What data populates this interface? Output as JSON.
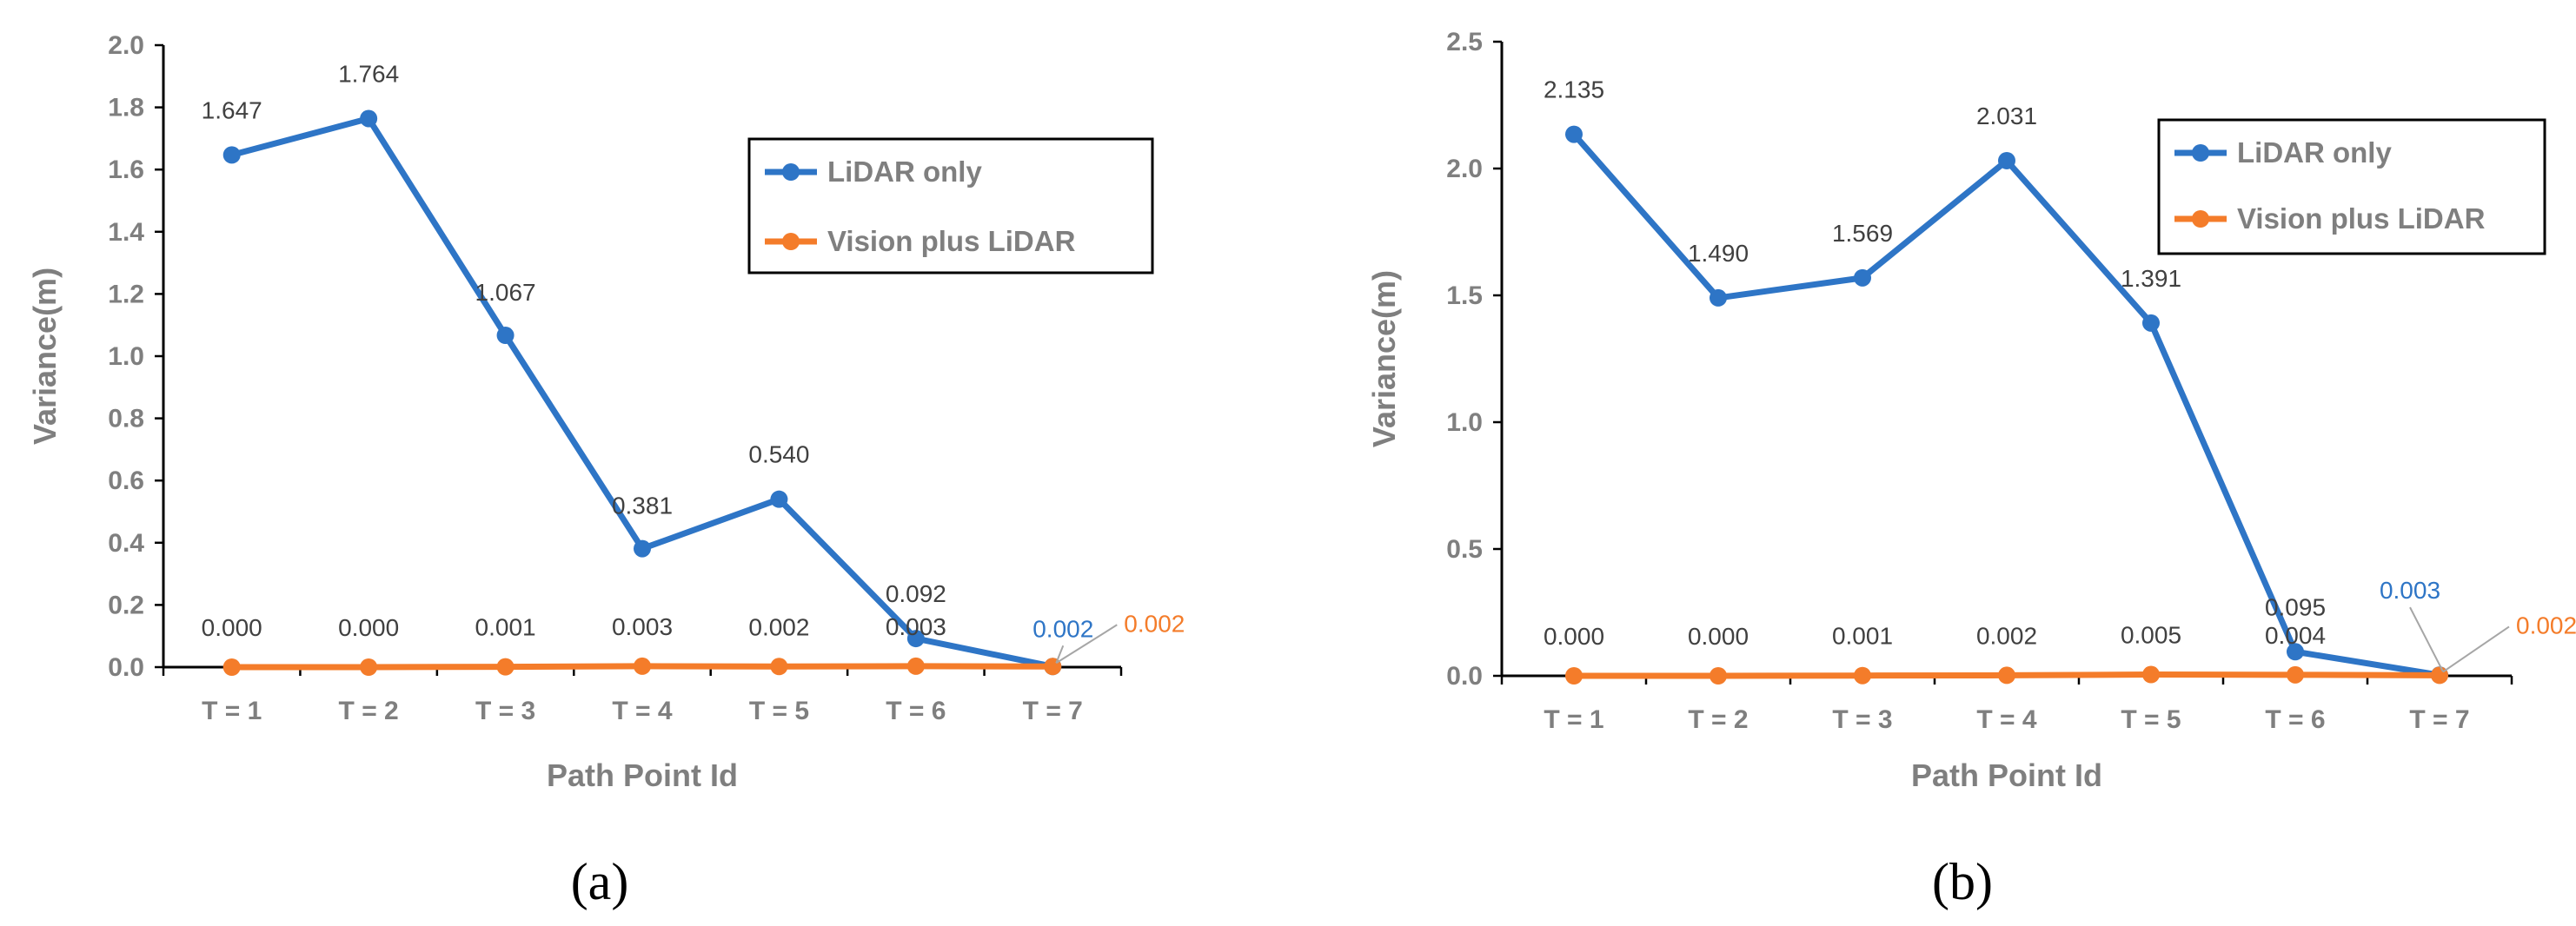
{
  "chart_data": [
    {
      "type": "line",
      "caption": "(a)",
      "xlabel": "Path Point Id",
      "ylabel": "Variance(m)",
      "categories": [
        "T = 1",
        "T = 2",
        "T = 3",
        "T = 4",
        "T = 5",
        "T = 6",
        "T = 7"
      ],
      "ylim": [
        0,
        2.0
      ],
      "yticks": [
        "0.0",
        "0.2",
        "0.4",
        "0.6",
        "0.8",
        "1.0",
        "1.2",
        "1.4",
        "1.6",
        "1.8",
        "2.0"
      ],
      "legend_position": "top-right",
      "series": [
        {
          "name": "LiDAR only",
          "color": "#2e75c6",
          "values": [
            1.647,
            1.764,
            1.067,
            0.381,
            0.54,
            0.092,
            0.002
          ],
          "labels": [
            "1.647",
            "1.764",
            "1.067",
            "0.381",
            "0.540",
            "0.092",
            "0.002"
          ]
        },
        {
          "name": "Vision plus LiDAR",
          "color": "#f47c2a",
          "values": [
            0.0,
            0.0,
            0.001,
            0.003,
            0.002,
            0.003,
            0.002
          ],
          "labels": [
            "0.000",
            "0.000",
            "0.001",
            "0.003",
            "0.002",
            "0.003",
            "0.002"
          ]
        }
      ]
    },
    {
      "type": "line",
      "caption": "(b)",
      "xlabel": "Path Point Id",
      "ylabel": "Variance(m)",
      "categories": [
        "T = 1",
        "T = 2",
        "T = 3",
        "T = 4",
        "T = 5",
        "T = 6",
        "T = 7"
      ],
      "ylim": [
        0,
        2.5
      ],
      "yticks": [
        "0.0",
        "0.5",
        "1.0",
        "1.5",
        "2.0",
        "2.5"
      ],
      "legend_position": "top-right",
      "series": [
        {
          "name": "LiDAR only",
          "color": "#2e75c6",
          "values": [
            2.135,
            1.49,
            1.569,
            2.031,
            1.391,
            0.095,
            0.003
          ],
          "labels": [
            "2.135",
            "1.490",
            "1.569",
            "2.031",
            "1.391",
            "0.095",
            "0.003"
          ]
        },
        {
          "name": "Vision plus LiDAR",
          "color": "#f47c2a",
          "values": [
            0.0,
            0.0,
            0.001,
            0.002,
            0.005,
            0.004,
            0.002
          ],
          "labels": [
            "0.000",
            "0.000",
            "0.001",
            "0.002",
            "0.005",
            "0.004",
            "0.002"
          ]
        }
      ]
    }
  ]
}
